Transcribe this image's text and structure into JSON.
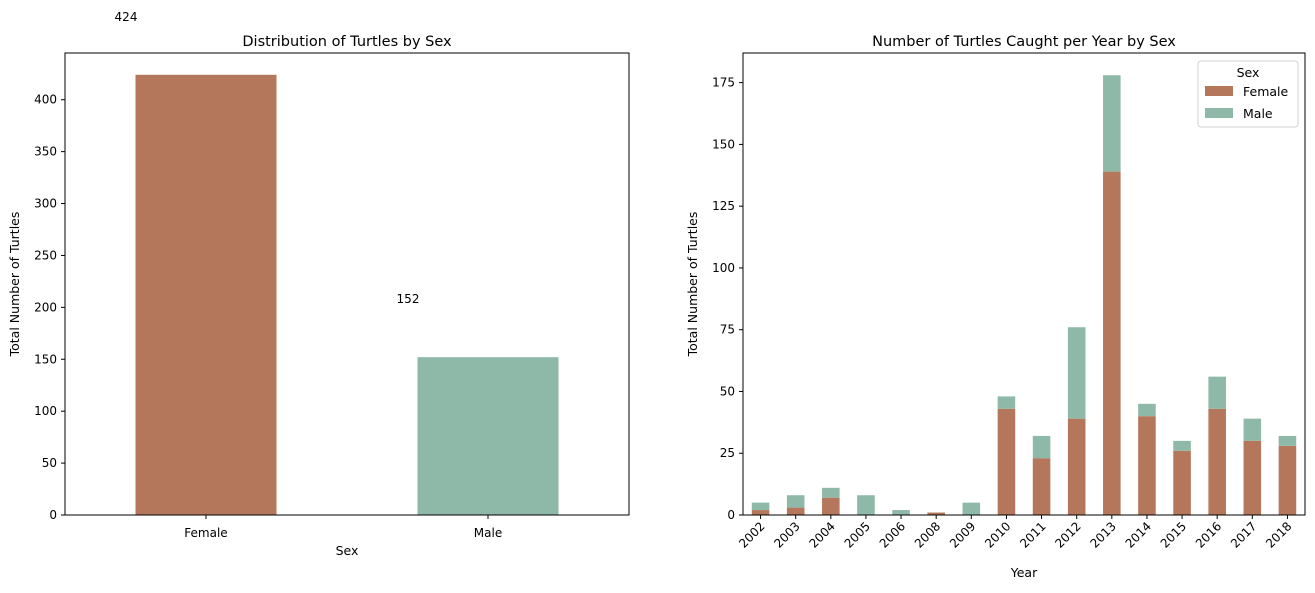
{
  "chart_data": [
    {
      "type": "bar",
      "title": "Distribution of Turtles by Sex",
      "xlabel": "Sex",
      "ylabel": "Total Number of Turtles",
      "categories": [
        "Female",
        "Male"
      ],
      "values": [
        424,
        152
      ],
      "data_labels": [
        "424",
        "152"
      ],
      "colors": [
        "#b5775b",
        "#8eb8a7"
      ],
      "ylim": [
        0,
        445
      ],
      "yticks": [
        0,
        50,
        100,
        150,
        200,
        250,
        300,
        350,
        400
      ],
      "grid": false
    },
    {
      "type": "bar",
      "stacked": true,
      "title": "Number of Turtles Caught per Year by Sex",
      "xlabel": "Year",
      "ylabel": "Total Number of Turtles",
      "categories": [
        "2002",
        "2003",
        "2004",
        "2005",
        "2006",
        "2008",
        "2009",
        "2010",
        "2011",
        "2012",
        "2013",
        "2014",
        "2015",
        "2016",
        "2017",
        "2018"
      ],
      "series": [
        {
          "name": "Female",
          "color": "#b5775b",
          "values": [
            2,
            3,
            7,
            0,
            0,
            1,
            0,
            43,
            23,
            39,
            139,
            40,
            26,
            43,
            30,
            28
          ]
        },
        {
          "name": "Male",
          "color": "#8eb8a7",
          "values": [
            3,
            5,
            4,
            8,
            2,
            0,
            5,
            5,
            9,
            37,
            39,
            5,
            4,
            13,
            9,
            4
          ]
        }
      ],
      "ylim": [
        0,
        187
      ],
      "yticks": [
        0,
        25,
        50,
        75,
        100,
        125,
        150,
        175
      ],
      "legend": {
        "title": "Sex",
        "position": "upper right"
      },
      "xtick_rotation": 45,
      "grid": false
    }
  ]
}
